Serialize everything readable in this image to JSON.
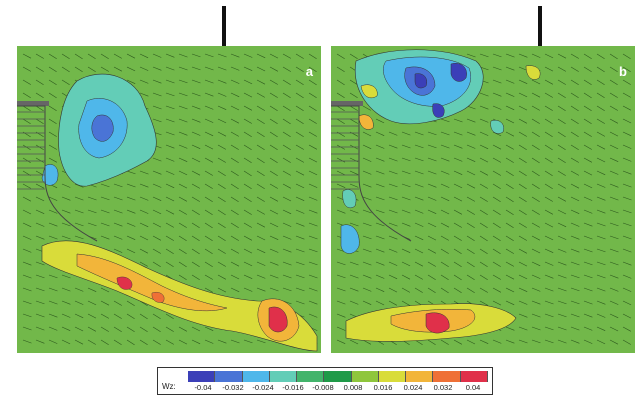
{
  "panels": [
    {
      "label": "a"
    },
    {
      "label": "b"
    }
  ],
  "colorbar": {
    "title": "Wz:",
    "ticks": [
      "-0.04",
      "-0.032",
      "-0.024",
      "-0.016",
      "-0.008",
      "0.008",
      "0.016",
      "0.024",
      "0.032",
      "0.04"
    ],
    "colors": [
      "#3b3fb8",
      "#4a74d6",
      "#4fb7ea",
      "#63cdb7",
      "#43b46b",
      "#1f9a48",
      "#8fc63c",
      "#d9dc3a",
      "#f2b53a",
      "#ef7036",
      "#e0304a"
    ]
  },
  "colors": {
    "field_green": "#72b84a",
    "positive_red": "#e0304a",
    "negative_blue": "#3b3fb8"
  }
}
